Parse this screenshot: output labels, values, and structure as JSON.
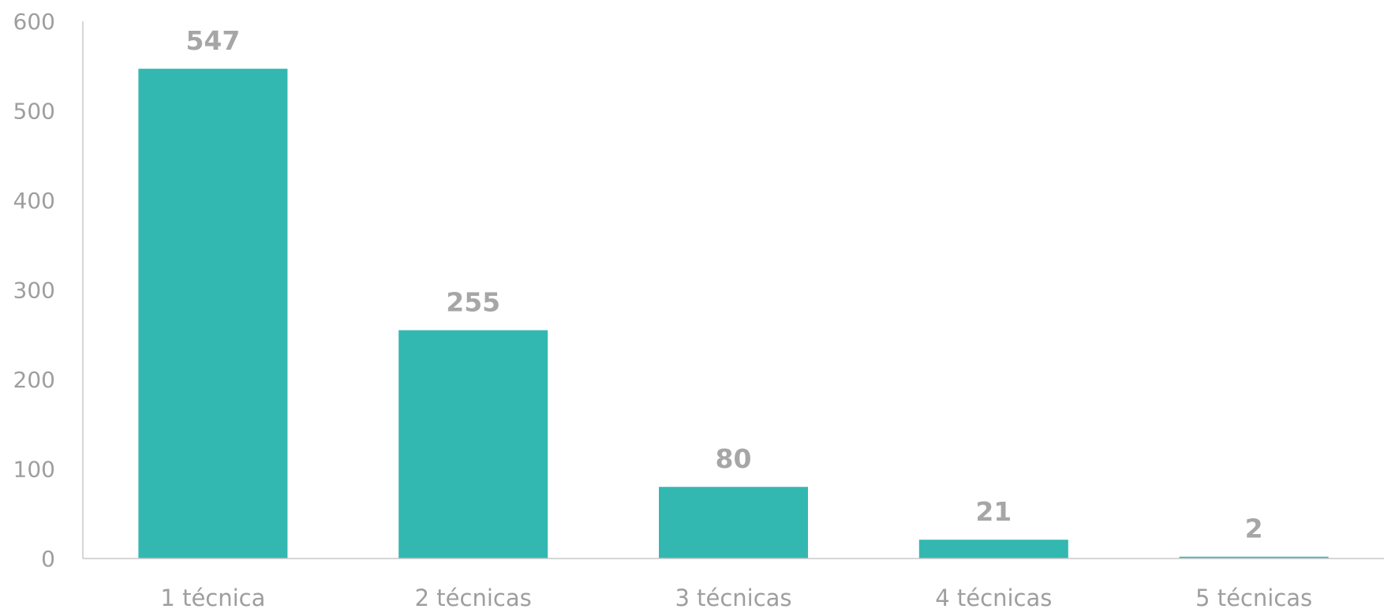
{
  "chart_data": {
    "type": "bar",
    "categories": [
      "1 técnica",
      "2 técnicas",
      "3 técnicas",
      "4 técnicas",
      "5 técnicas"
    ],
    "values": [
      547,
      255,
      80,
      21,
      2
    ],
    "data_labels": [
      "547",
      "255",
      "80",
      "21",
      "2"
    ],
    "title": "",
    "xlabel": "",
    "ylabel": "",
    "ylim": [
      0,
      600
    ],
    "yticks": [
      0,
      100,
      200,
      300,
      400,
      500,
      600
    ],
    "ytick_labels": [
      "0",
      "100",
      "200",
      "300",
      "400",
      "500",
      "600"
    ],
    "grid": false,
    "legend": "none",
    "colors": {
      "bar": "#33b8b1",
      "axis": "#c8c8c8",
      "text": "#9e9e9e"
    }
  }
}
